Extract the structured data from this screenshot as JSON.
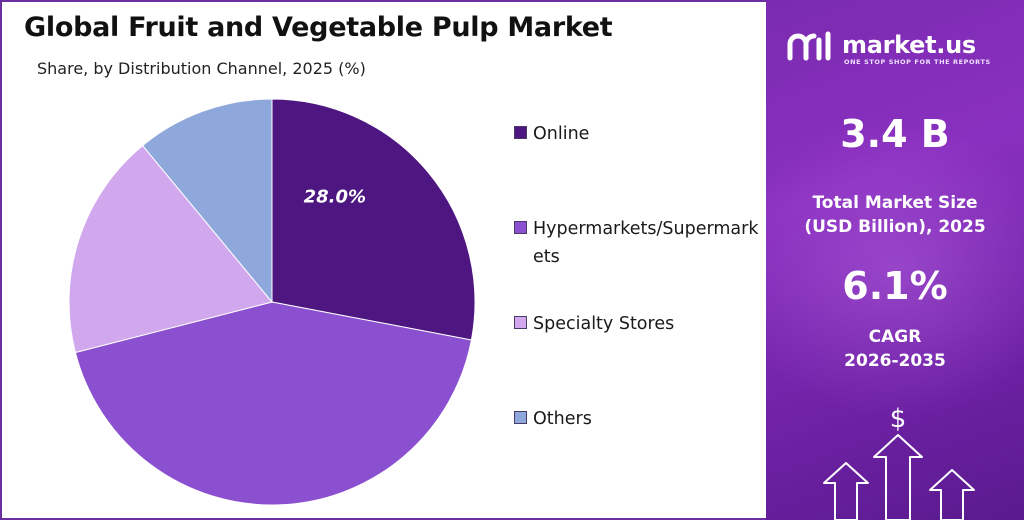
{
  "header": {
    "title": "Global Fruit and Vegetable Pulp Market",
    "subtitle": "Share, by Distribution Channel, 2025 (%)"
  },
  "chart_data": {
    "type": "pie",
    "title": "Global Fruit and Vegetable Pulp Market",
    "subtitle": "Share, by Distribution Channel, 2025 (%)",
    "categories": [
      "Online",
      "Hypermarkets/Supermarkets",
      "Specialty Stores",
      "Others"
    ],
    "values": [
      28.0,
      43.0,
      18.0,
      11.0
    ],
    "data_labels": [
      "28.0%",
      "",
      "",
      ""
    ],
    "colors": [
      "#4d1680",
      "#8b50d0",
      "#d1a8ee",
      "#8fa8dc"
    ],
    "legend_placement": "right"
  },
  "legend": {
    "items": [
      {
        "label": "Online",
        "color": "#4d1680"
      },
      {
        "label": "Hypermarkets/Supermarkets",
        "color": "#8b50d0"
      },
      {
        "label": "Specialty Stores",
        "color": "#d1a8ee"
      },
      {
        "label": "Others",
        "color": "#8fa8dc"
      }
    ]
  },
  "sidebar": {
    "brand_name": "market.us",
    "tagline": "ONE STOP SHOP FOR THE REPORTS",
    "market_size_value": "3.4 B",
    "market_size_label_line1": "Total Market Size",
    "market_size_label_line2": "(USD Billion), 2025",
    "cagr_value": "6.1%",
    "cagr_label_line1": "CAGR",
    "cagr_label_line2": "2026-2035",
    "dollar_symbol": "$"
  },
  "icons": [
    "market-us-logo-icon",
    "dollar-icon",
    "up-arrow-icon"
  ]
}
